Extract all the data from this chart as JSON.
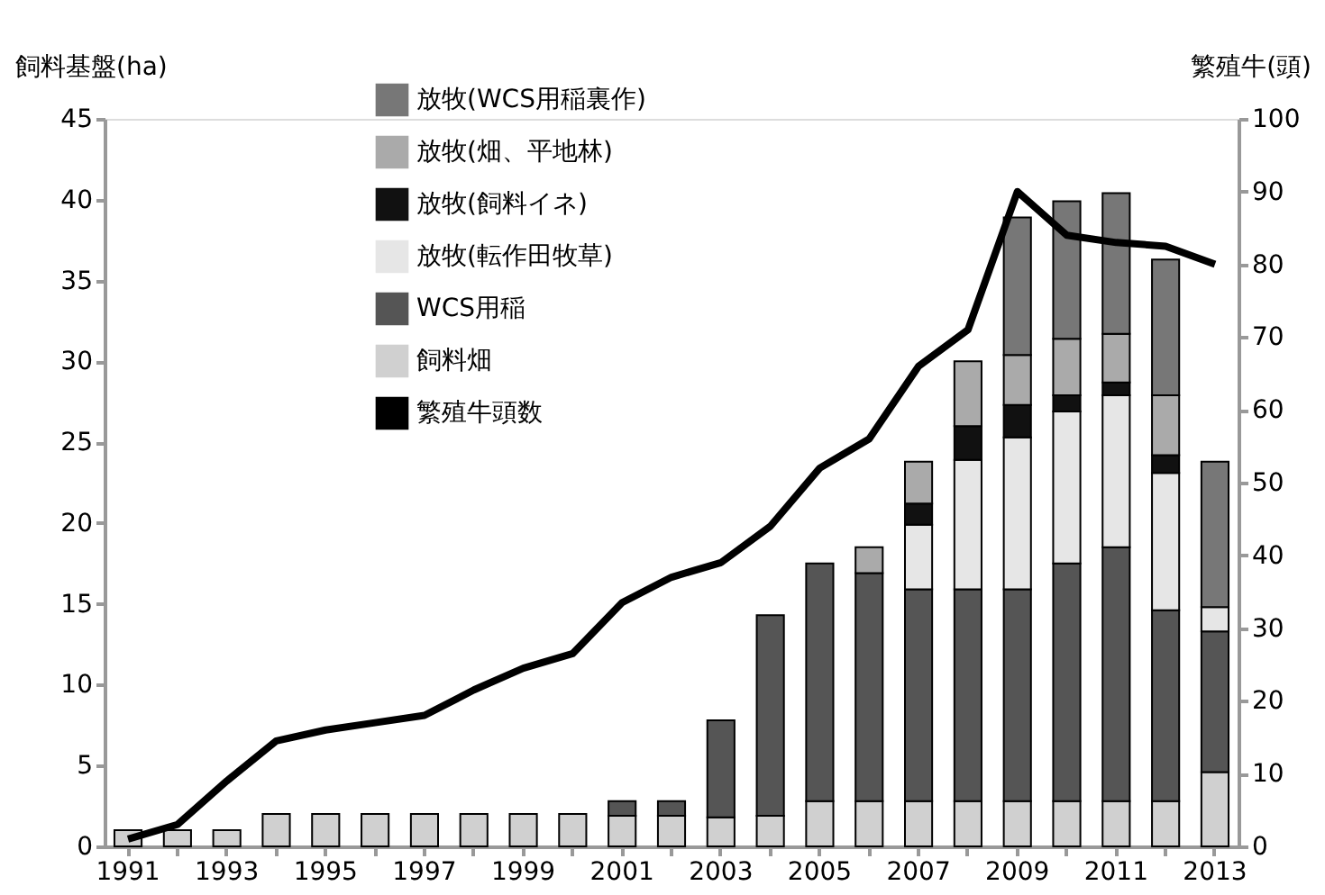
{
  "chart_data": {
    "type": "bar",
    "stacked": true,
    "ylabel": "飼料基盤(ha)",
    "y2label": "繁殖牛(頭)",
    "categories": [
      "1991",
      null,
      "1993",
      null,
      "1995",
      null,
      "1997",
      null,
      "1999",
      null,
      "2001",
      null,
      "2003",
      null,
      "2005",
      null,
      "2007",
      null,
      "2009",
      null,
      "2011",
      null,
      "2013"
    ],
    "ylim": [
      0,
      45
    ],
    "yticks": [
      0,
      5,
      10,
      15,
      20,
      25,
      30,
      35,
      40,
      45
    ],
    "y2lim": [
      0,
      100
    ],
    "y2ticks": [
      0,
      10,
      20,
      30,
      40,
      50,
      60,
      70,
      80,
      90,
      100
    ],
    "legend": "top left",
    "grid": false,
    "series": [
      {
        "name": "飼料畑",
        "color": "#d0d0d0",
        "values": [
          1,
          1,
          1,
          2,
          2,
          2,
          2,
          2,
          2,
          2,
          1.9,
          1.9,
          1.8,
          1.9,
          2.8,
          2.8,
          2.8,
          2.8,
          2.8,
          2.8,
          2.8,
          2.8,
          4.6
        ]
      },
      {
        "name": "WCS用稲",
        "color": "#555555",
        "values": [
          null,
          null,
          null,
          null,
          null,
          null,
          null,
          null,
          null,
          null,
          0.9,
          0.9,
          6,
          12.4,
          14.7,
          14.1,
          13.1,
          13.1,
          13.1,
          14.7,
          15.7,
          11.8,
          8.7
        ]
      },
      {
        "name": "放牧(転作田牧草)",
        "color": "#e6e6e6",
        "values": [
          null,
          null,
          null,
          null,
          null,
          null,
          null,
          null,
          null,
          null,
          null,
          null,
          null,
          null,
          null,
          null,
          4,
          8,
          9.4,
          9.4,
          9.4,
          8.5,
          1.5
        ]
      },
      {
        "name": "放牧(飼料イネ)",
        "color": "#111111",
        "values": [
          null,
          null,
          null,
          null,
          null,
          null,
          null,
          null,
          null,
          null,
          null,
          null,
          null,
          null,
          null,
          null,
          1.3,
          2.1,
          2,
          1,
          0.8,
          1.1,
          null
        ]
      },
      {
        "name": "放牧(畑、平地林)",
        "color": "#aaaaaa",
        "values": [
          null,
          null,
          null,
          null,
          null,
          null,
          null,
          null,
          null,
          null,
          null,
          null,
          null,
          null,
          null,
          1.6,
          2.6,
          4,
          3.1,
          3.5,
          3,
          3.7,
          null
        ]
      },
      {
        "name": "放牧(WCS用稲裏作)",
        "color": "#777777",
        "values": [
          null,
          null,
          null,
          null,
          null,
          null,
          null,
          null,
          null,
          null,
          null,
          null,
          null,
          null,
          null,
          null,
          null,
          null,
          8.5,
          8.5,
          8.7,
          8.4,
          9
        ]
      },
      {
        "name": "繁殖牛頭数",
        "color": "#000000",
        "type": "line",
        "axis": "y2",
        "values": [
          1,
          3,
          9,
          14.5,
          16,
          17,
          18,
          21.5,
          24.5,
          26.5,
          33.5,
          37,
          39,
          44,
          52,
          56,
          66,
          71,
          90,
          84,
          83,
          82.5,
          80
        ]
      }
    ]
  }
}
